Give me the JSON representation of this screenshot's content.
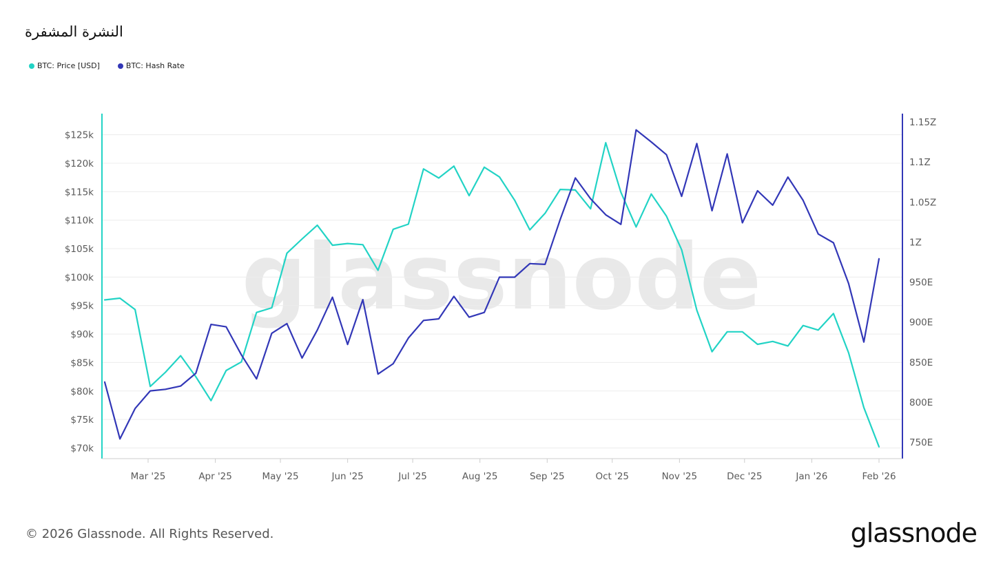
{
  "title": "النشرة المشفرة",
  "watermark": "glassnode",
  "footer": {
    "copyright": "© 2026 Glassnode. All Rights Reserved.",
    "brand": "glassnode"
  },
  "colors": {
    "price": "#22d3c5",
    "hashrate": "#3237b7",
    "grid": "#ececec",
    "axis": "#cccccc"
  },
  "chart_data": {
    "type": "line",
    "title": "النشرة المشفرة",
    "x_tick_labels": [
      "Mar '25",
      "Apr '25",
      "May '25",
      "Jun '25",
      "Jul '25",
      "Aug '25",
      "Sep '25",
      "Oct '25",
      "Nov '25",
      "Dec '25",
      "Jan '26",
      "Feb '26"
    ],
    "x_tick_dates": [
      "2025-03-01",
      "2025-04-01",
      "2025-05-01",
      "2025-06-01",
      "2025-07-01",
      "2025-08-01",
      "2025-09-01",
      "2025-10-01",
      "2025-11-01",
      "2025-12-01",
      "2026-01-01",
      "2026-02-01"
    ],
    "y_left": {
      "label": "",
      "ylim": [
        68000,
        127500
      ],
      "ticks": [
        70000,
        75000,
        80000,
        85000,
        90000,
        95000,
        100000,
        105000,
        110000,
        115000,
        120000,
        125000
      ],
      "tick_labels": [
        "$70k",
        "$75k",
        "$80k",
        "$85k",
        "$90k",
        "$95k",
        "$100k",
        "$105k",
        "$110k",
        "$115k",
        "$120k",
        "$125k"
      ]
    },
    "y_right": {
      "label": "",
      "ylim": [
        730,
        1160
      ],
      "ticks": [
        750,
        800,
        850,
        900,
        950,
        1000,
        1050,
        1100,
        1150
      ],
      "tick_labels": [
        "750E",
        "800E",
        "850E",
        "900E",
        "950E",
        "1Z",
        "1.05Z",
        "1.1Z",
        "1.15Z"
      ],
      "unit": "EH/s"
    },
    "legend": "top-left",
    "grid": true,
    "x": [
      "2025-02-09",
      "2025-02-16",
      "2025-02-23",
      "2025-03-02",
      "2025-03-09",
      "2025-03-16",
      "2025-03-23",
      "2025-03-30",
      "2025-04-06",
      "2025-04-13",
      "2025-04-20",
      "2025-04-27",
      "2025-05-04",
      "2025-05-11",
      "2025-05-18",
      "2025-05-25",
      "2025-06-01",
      "2025-06-08",
      "2025-06-15",
      "2025-06-22",
      "2025-06-29",
      "2025-07-06",
      "2025-07-13",
      "2025-07-20",
      "2025-07-27",
      "2025-08-03",
      "2025-08-10",
      "2025-08-17",
      "2025-08-24",
      "2025-08-31",
      "2025-09-07",
      "2025-09-14",
      "2025-09-21",
      "2025-09-28",
      "2025-10-05",
      "2025-10-12",
      "2025-10-19",
      "2025-10-26",
      "2025-11-02",
      "2025-11-09",
      "2025-11-16",
      "2025-11-23",
      "2025-11-30",
      "2025-12-07",
      "2025-12-14",
      "2025-12-21",
      "2025-12-28",
      "2026-01-04",
      "2026-01-11",
      "2026-01-18",
      "2026-01-25",
      "2026-02-01"
    ],
    "series": [
      {
        "name": "BTC: Price [USD]",
        "axis": "left",
        "values": [
          96000,
          96300,
          94300,
          80800,
          83300,
          86200,
          82500,
          78300,
          83600,
          85100,
          93800,
          94600,
          104200,
          106700,
          109100,
          105600,
          105900,
          105700,
          101200,
          108400,
          109300,
          119000,
          117400,
          119500,
          114300,
          119300,
          117600,
          113500,
          108300,
          111200,
          115400,
          115300,
          112000,
          123600,
          114900,
          108800,
          114600,
          110700,
          104800,
          94200,
          86900,
          90400,
          90400,
          88200,
          88700,
          87900,
          91500,
          90700,
          93600,
          86700,
          77100,
          70200
        ]
      },
      {
        "name": "BTC: Hash Rate",
        "axis": "right",
        "values": [
          825,
          754,
          792,
          814,
          816,
          820,
          836,
          897,
          894,
          859,
          829,
          886,
          898,
          855,
          890,
          931,
          872,
          928,
          835,
          848,
          880,
          902,
          904,
          932,
          906,
          912,
          956,
          956,
          973,
          972,
          1028,
          1080,
          1054,
          1034,
          1022,
          1140,
          1125,
          1109,
          1057,
          1123,
          1039,
          1110,
          1024,
          1064,
          1046,
          1081,
          1052,
          1010,
          999,
          948,
          875,
          979
        ]
      }
    ]
  },
  "legend": [
    {
      "label": "BTC: Price [USD]",
      "color": "#22d3c5"
    },
    {
      "label": "BTC: Hash Rate",
      "color": "#3237b7"
    }
  ]
}
